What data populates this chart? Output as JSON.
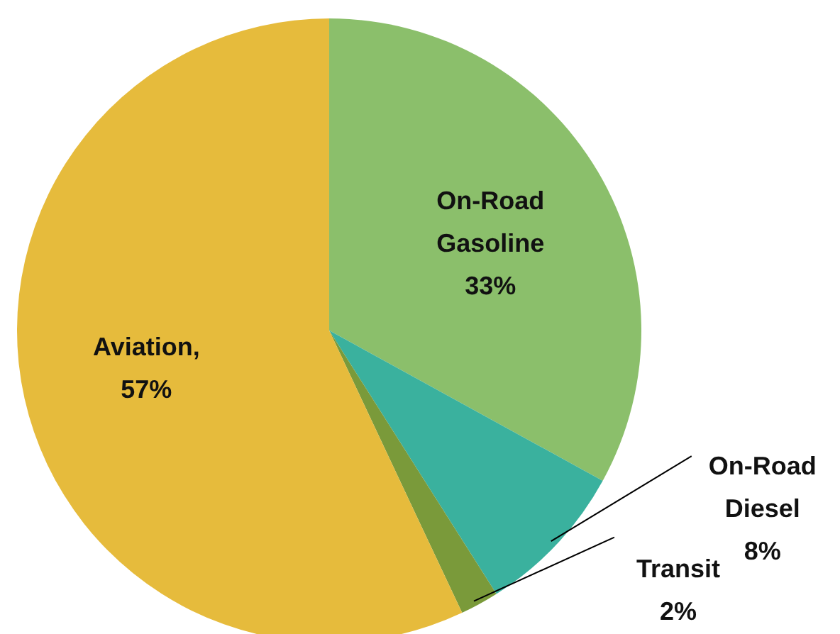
{
  "chart_data": {
    "type": "pie",
    "categories": [
      "On-Road Gasoline",
      "On-Road Diesel",
      "Transit",
      "Aviation"
    ],
    "values": [
      33,
      8,
      2,
      57
    ],
    "colors": [
      "#8bbf6b",
      "#3ab19e",
      "#7a9a3a",
      "#e6bb3c"
    ],
    "value_labels": [
      "33%",
      "8%",
      "2%",
      ", 57%"
    ],
    "legend": false
  }
}
